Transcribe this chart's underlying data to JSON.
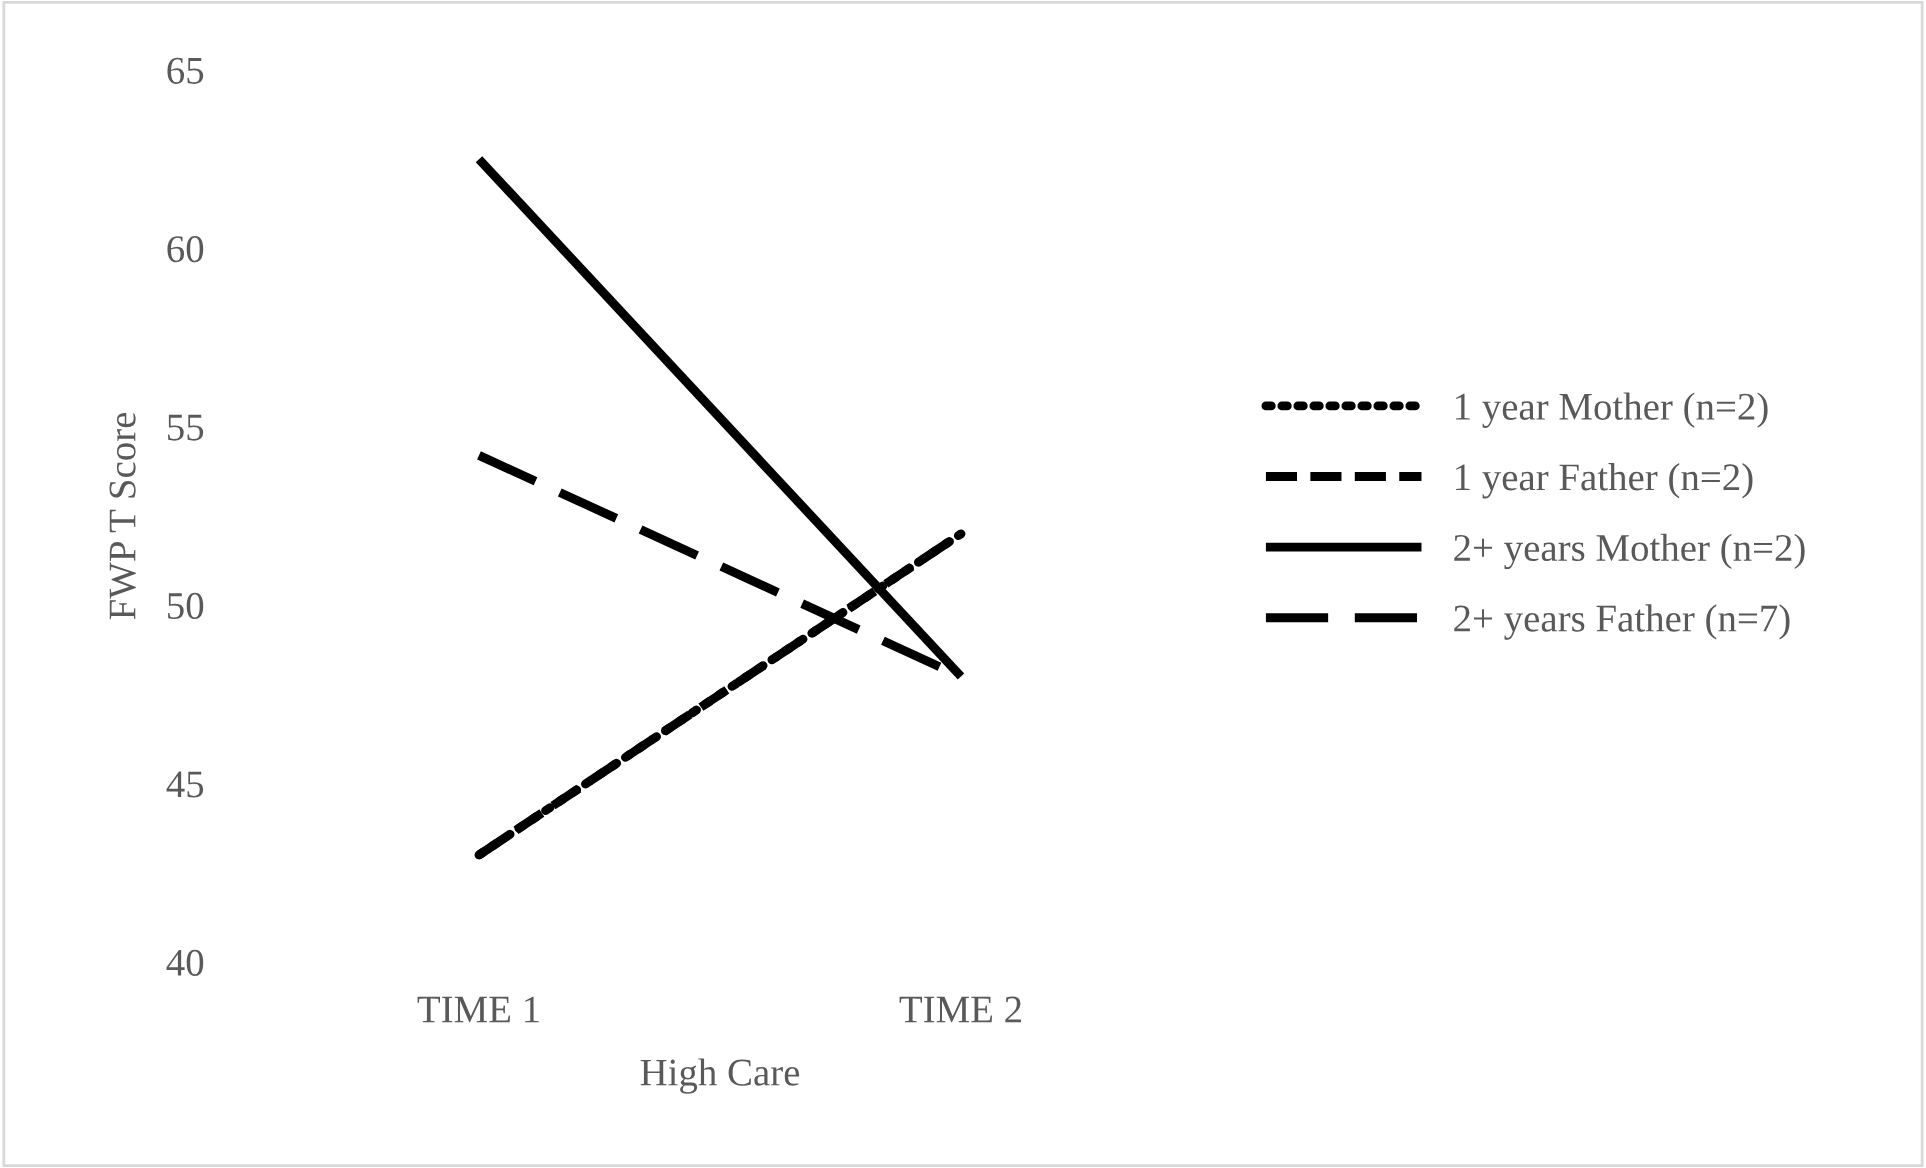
{
  "chart_data": {
    "type": "line",
    "xlabel": "High Care",
    "ylabel": "FWP T Score",
    "categories": [
      "TIME 1",
      "TIME 2"
    ],
    "series": [
      {
        "name": "1 year Mother (n=2)",
        "color": "#000000",
        "line_style": "dotted",
        "values": [
          43,
          52
        ]
      },
      {
        "name": "1 year Father (n=2)",
        "color": "#000000",
        "line_style": "dashed",
        "values": [
          43,
          52
        ]
      },
      {
        "name": "2+ years Mother (n=2)",
        "color": "#000000",
        "line_style": "solid",
        "values": [
          62.5,
          48
        ]
      },
      {
        "name": "2+ years Father (n=7)",
        "color": "#000000",
        "line_style": "longdash",
        "values": [
          54.2,
          48
        ]
      }
    ],
    "ylim": [
      40,
      65
    ],
    "yticks": [
      40,
      45,
      50,
      55,
      60,
      65
    ],
    "grid": false,
    "legend": "right",
    "marker": "none"
  }
}
